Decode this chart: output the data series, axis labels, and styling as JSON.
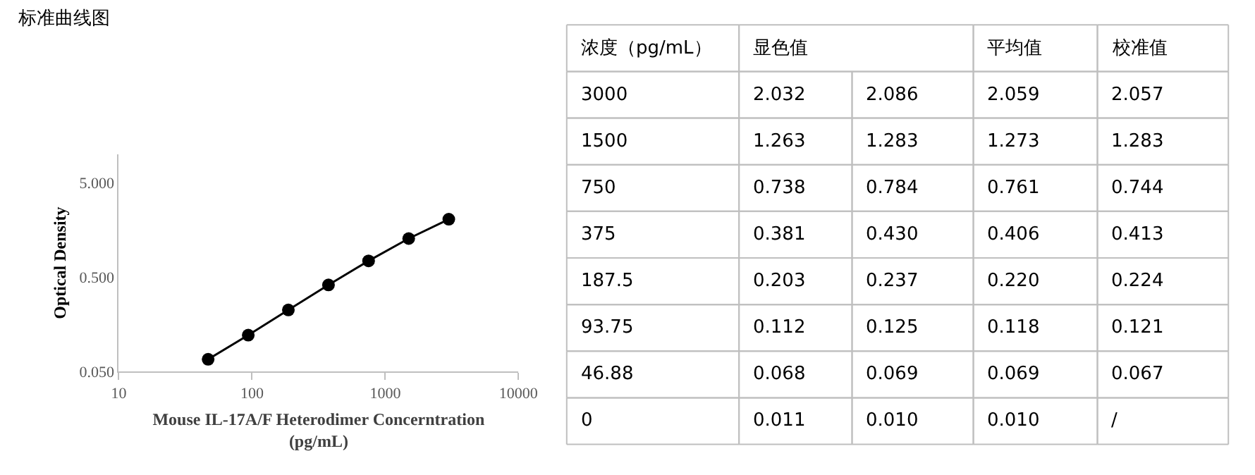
{
  "chart_data": [
    {
      "type": "line",
      "title": "标准曲线图",
      "xlabel": "Mouse IL-17A/F Heterodimer Concerntration (pg/mL)",
      "ylabel": "Optical Density",
      "log": "xy",
      "x": [
        46.88,
        93.75,
        187.5,
        375,
        750,
        1500,
        3000
      ],
      "series": [
        {
          "color": "#000000",
          "values": [
            0.067,
            0.121,
            0.224,
            0.413,
            0.744,
            1.283,
            2.057
          ]
        }
      ],
      "marker": "circle",
      "line_style": "solid",
      "xlim": [
        10,
        10000
      ],
      "xticks": [
        10,
        100,
        1000,
        10000
      ],
      "ylim": [
        0.05,
        10
      ],
      "yticks": [
        {
          "value": 0.05,
          "label": "0.050"
        },
        {
          "value": 0.5,
          "label": "0.500"
        },
        {
          "value": 5,
          "label": "5.000"
        }
      ]
    },
    {
      "type": "heatmap",
      "ylabel": "浓度（pg/mL）",
      "categories": [
        "显色值",
        null,
        "平均值",
        "校准值"
      ],
      "y_categories": [
        "3000",
        "1500",
        "750",
        "375",
        "187.5",
        "93.75",
        "46.88",
        "0"
      ],
      "cells": [
        [
          2.032,
          2.086,
          2.059,
          2.057
        ],
        [
          1.263,
          1.283,
          1.273,
          1.283
        ],
        [
          0.738,
          0.784,
          0.761,
          0.744
        ],
        [
          0.381,
          0.43,
          0.406,
          0.413
        ],
        [
          0.203,
          0.237,
          0.22,
          0.224
        ],
        [
          0.112,
          0.125,
          0.118,
          0.121
        ],
        [
          0.068,
          0.069,
          0.069,
          0.067
        ],
        [
          0.011,
          0.01,
          0.01,
          null
        ]
      ],
      "cell_labels": [
        [
          "2.032",
          "2.086",
          "2.059",
          "2.057"
        ],
        [
          "1.263",
          "1.283",
          "1.273",
          "1.283"
        ],
        [
          "0.738",
          "0.784",
          "0.761",
          "0.744"
        ],
        [
          "0.381",
          "0.430",
          "0.406",
          "0.413"
        ],
        [
          "0.203",
          "0.237",
          "0.220",
          "0.224"
        ],
        [
          "0.112",
          "0.125",
          "0.118",
          "0.121"
        ],
        [
          "0.068",
          "0.069",
          "0.069",
          "0.067"
        ],
        [
          "0.011",
          "0.010",
          "0.010",
          "/"
        ]
      ]
    }
  ]
}
